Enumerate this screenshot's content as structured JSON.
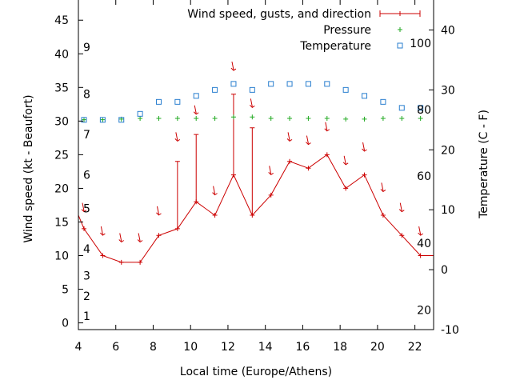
{
  "chart_data": {
    "type": "line",
    "xlabel": "Local time (Europe/Athens)",
    "ylabel": "Wind speed (kt - Beaufort)",
    "y2label": "Temperature (C - F)",
    "xlim": [
      4,
      23
    ],
    "ylim": [
      -1,
      48
    ],
    "y2lim": [
      -10,
      45
    ],
    "xticks": [
      4,
      6,
      8,
      10,
      12,
      14,
      16,
      18,
      20,
      22
    ],
    "yticks": [
      0,
      5,
      10,
      15,
      20,
      25,
      30,
      35,
      40,
      45
    ],
    "y2ticks": [
      -10,
      0,
      10,
      20,
      30,
      40
    ],
    "beaufort": [
      {
        "label": "1",
        "kt": 1
      },
      {
        "label": "2",
        "kt": 4
      },
      {
        "label": "3",
        "kt": 7
      },
      {
        "label": "4",
        "kt": 11
      },
      {
        "label": "5",
        "kt": 17
      },
      {
        "label": "6",
        "kt": 22
      },
      {
        "label": "7",
        "kt": 28
      },
      {
        "label": "8",
        "kt": 34
      },
      {
        "label": "9",
        "kt": 41
      }
    ],
    "fahrenheit": [
      {
        "label": "20",
        "c": -6.7
      },
      {
        "label": "40",
        "c": 4.4
      },
      {
        "label": "60",
        "c": 15.6
      },
      {
        "label": "80",
        "c": 26.7
      },
      {
        "label": "100",
        "c": 37.8
      }
    ],
    "grid": false,
    "legend_position": "top-right",
    "legend": [
      {
        "name": "Wind speed, gusts, and direction",
        "color": "#cc0000"
      },
      {
        "name": "Pressure",
        "color": "#22aa22"
      },
      {
        "name": "Temperature",
        "color": "#2a7fcf"
      }
    ],
    "wind": {
      "x": [
        4,
        4.3,
        5.3,
        6.3,
        7.3,
        8.3,
        9.3,
        10.3,
        11.3,
        12.3,
        13.3,
        14.3,
        15.3,
        16.3,
        17.3,
        18.3,
        19.3,
        20.3,
        21.3,
        22.3,
        23
      ],
      "speed": [
        16,
        14,
        10,
        9,
        9,
        13,
        14,
        18,
        16,
        22,
        16,
        19,
        24,
        23,
        25,
        20,
        22,
        16,
        13,
        10,
        10
      ],
      "gusts": [
        {
          "x": 9.3,
          "low": 14,
          "high": 24
        },
        {
          "x": 10.3,
          "low": 18,
          "high": 28
        },
        {
          "x": 12.3,
          "low": 22,
          "high": 34
        },
        {
          "x": 13.3,
          "low": 16,
          "high": 29
        }
      ],
      "arrows": [
        {
          "x": 4.3,
          "y": 17
        },
        {
          "x": 5.3,
          "y": 13.5
        },
        {
          "x": 6.3,
          "y": 12.5
        },
        {
          "x": 7.3,
          "y": 12.5
        },
        {
          "x": 8.3,
          "y": 16.5
        },
        {
          "x": 9.3,
          "y": 27.5
        },
        {
          "x": 10.3,
          "y": 31.5
        },
        {
          "x": 11.3,
          "y": 19.5
        },
        {
          "x": 12.3,
          "y": 38
        },
        {
          "x": 13.3,
          "y": 32.5
        },
        {
          "x": 14.3,
          "y": 22.5
        },
        {
          "x": 15.3,
          "y": 27.5
        },
        {
          "x": 16.3,
          "y": 27
        },
        {
          "x": 17.3,
          "y": 29
        },
        {
          "x": 18.3,
          "y": 24
        },
        {
          "x": 19.3,
          "y": 26
        },
        {
          "x": 20.3,
          "y": 20
        },
        {
          "x": 21.3,
          "y": 17
        },
        {
          "x": 22.3,
          "y": 13.5
        }
      ]
    },
    "pressure": {
      "x": [
        4.3,
        5.3,
        6.3,
        7.3,
        8.3,
        9.3,
        10.3,
        11.3,
        12.3,
        13.3,
        14.3,
        15.3,
        16.3,
        17.3,
        18.3,
        19.3,
        20.3,
        21.3,
        22.3
      ],
      "y": [
        30.2,
        30.2,
        30.3,
        30.4,
        30.4,
        30.4,
        30.4,
        30.4,
        30.6,
        30.6,
        30.4,
        30.4,
        30.4,
        30.4,
        30.3,
        30.3,
        30.4,
        30.4,
        30.4
      ]
    },
    "temperature": {
      "x": [
        4.3,
        5.3,
        6.3,
        7.3,
        8.3,
        9.3,
        10.3,
        11.3,
        12.3,
        13.3,
        14.3,
        15.3,
        16.3,
        17.3,
        18.3,
        19.3,
        20.3,
        21.3,
        22.3
      ],
      "c": [
        25,
        25,
        25,
        26,
        28,
        28,
        29,
        30,
        31,
        30,
        31,
        31,
        31,
        31,
        30,
        29,
        28,
        27,
        27
      ]
    }
  }
}
